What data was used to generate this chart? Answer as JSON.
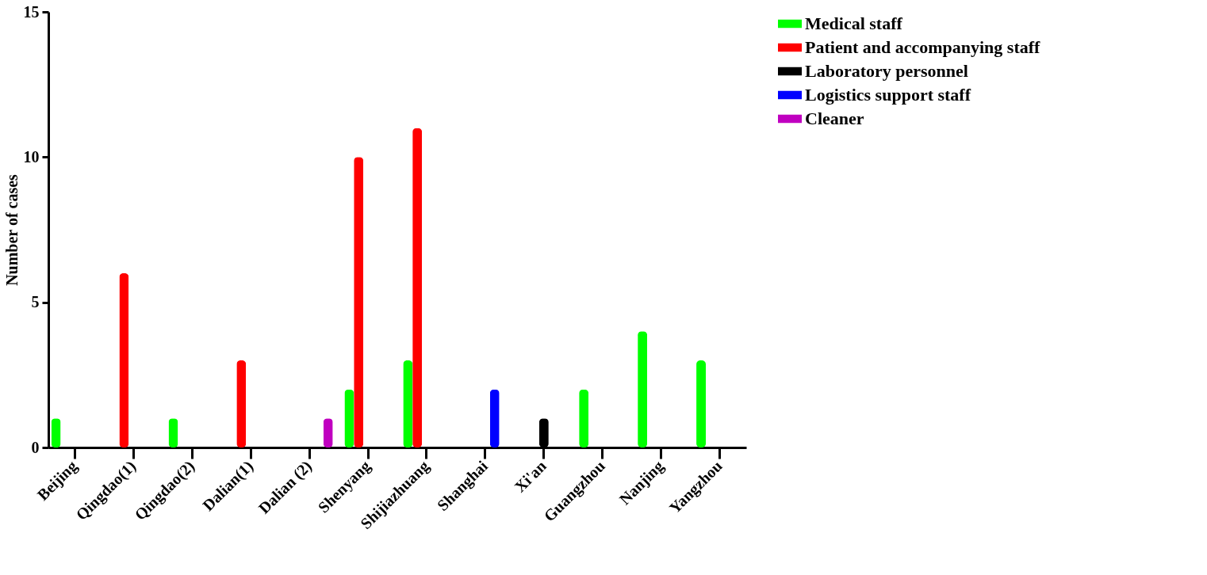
{
  "chart_data": {
    "type": "bar",
    "ylabel": "Number of cases",
    "categories": [
      "Beijing",
      "Qingdao(1)",
      "Qingdao(2)",
      "Dalian(1)",
      "Dalian (2)",
      "Shenyang",
      "Shijiazhuang",
      "Shanghai",
      "Xi'an",
      "Guangzhou",
      "Nanjing",
      "Yangzhou"
    ],
    "series": [
      {
        "name": "Medical staff",
        "color": "#00ff00",
        "values": [
          1,
          0,
          1,
          0,
          0,
          2,
          3,
          0,
          0,
          2,
          4,
          3
        ]
      },
      {
        "name": "Patient and accompanying staff",
        "color": "#ff0000",
        "values": [
          0,
          6,
          0,
          3,
          0,
          10,
          11,
          0,
          0,
          0,
          0,
          0
        ]
      },
      {
        "name": "Laboratory personnel",
        "color": "#000000",
        "values": [
          0,
          0,
          0,
          0,
          0,
          0,
          0,
          0,
          1,
          0,
          0,
          0
        ]
      },
      {
        "name": "Logistics support staff",
        "color": "#0000ff",
        "values": [
          0,
          0,
          0,
          0,
          0,
          0,
          0,
          2,
          0,
          0,
          0,
          0
        ]
      },
      {
        "name": "Cleaner",
        "color": "#c000c0",
        "values": [
          0,
          0,
          0,
          0,
          1,
          0,
          0,
          0,
          0,
          0,
          0,
          0
        ]
      }
    ],
    "ylim": [
      0,
      15
    ],
    "yticks": [
      0,
      5,
      10,
      15
    ],
    "grid": false,
    "legend": "top right"
  }
}
